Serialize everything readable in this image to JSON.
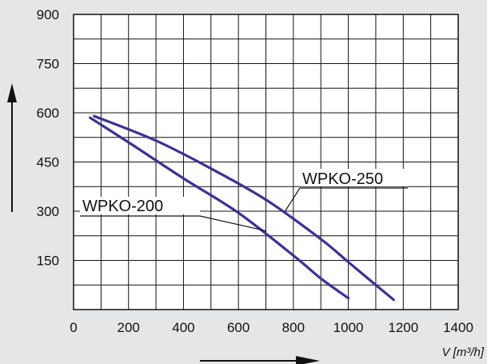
{
  "chart_data": {
    "type": "line",
    "xlabel": "V [m³/h]",
    "ylabel": "",
    "xlim": [
      0,
      1400
    ],
    "ylim": [
      0,
      900
    ],
    "x_ticks": [
      0,
      200,
      400,
      600,
      800,
      1000,
      1200,
      1400
    ],
    "y_ticks": [
      150,
      300,
      450,
      600,
      750,
      900
    ],
    "x_tick_labels": [
      "0",
      "200",
      "400",
      "600",
      "800",
      "1000",
      "1200",
      "1400"
    ],
    "y_tick_labels": [
      "150",
      "300",
      "450",
      "600",
      "750",
      "900"
    ],
    "grid": true,
    "grid_x_minor_step": 100,
    "grid_y_minor_step": 75,
    "series": [
      {
        "name": "WPKO-250",
        "color": "#3a3299",
        "x": [
          75,
          300,
          500,
          700,
          900,
          1000,
          1100,
          1165
        ],
        "y": [
          590,
          515,
          430,
          335,
          215,
          145,
          75,
          30
        ]
      },
      {
        "name": "WPKO-200",
        "color": "#3a3299",
        "x": [
          60,
          200,
          400,
          600,
          800,
          900,
          1000
        ],
        "y": [
          585,
          510,
          400,
          295,
          165,
          95,
          35
        ]
      }
    ]
  }
}
